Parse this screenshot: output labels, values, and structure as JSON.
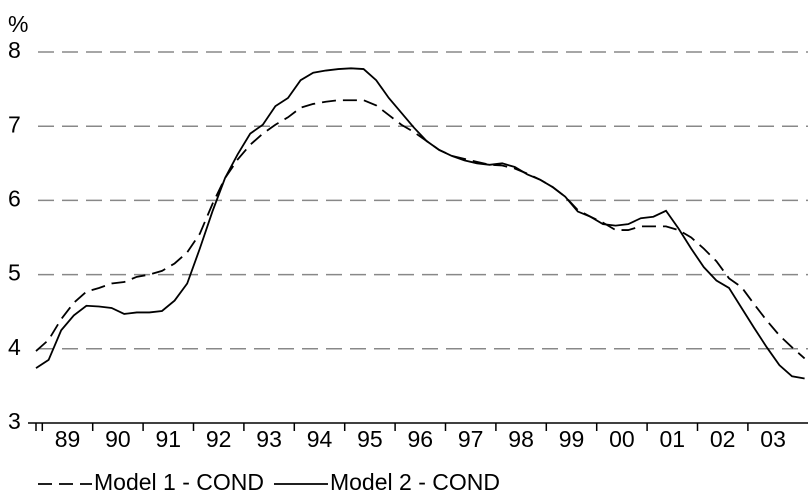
{
  "chart_data": {
    "type": "line",
    "y_label": "%",
    "categories": [
      null,
      "89",
      null,
      null,
      null,
      "90",
      null,
      null,
      null,
      "91",
      null,
      null,
      null,
      "92",
      null,
      null,
      null,
      "93",
      null,
      null,
      null,
      "94",
      null,
      null,
      null,
      "95",
      null,
      null,
      null,
      "96",
      null,
      null,
      null,
      "97",
      null,
      null,
      null,
      "98",
      null,
      null,
      null,
      "99",
      null,
      null,
      null,
      "00",
      null,
      null,
      null,
      "01",
      null,
      null,
      null,
      "02",
      null,
      null,
      null,
      "03",
      null,
      null,
      null,
      null
    ],
    "series": [
      {
        "name": "Model 1 - COND",
        "color": "#000000",
        "dashed": true,
        "values": [
          3.97,
          4.12,
          4.4,
          4.62,
          4.77,
          4.82,
          4.88,
          4.9,
          4.97,
          5.0,
          5.05,
          5.15,
          5.3,
          5.55,
          5.95,
          6.3,
          6.55,
          6.75,
          6.9,
          7.02,
          7.12,
          7.25,
          7.3,
          7.33,
          7.35,
          7.35,
          7.35,
          7.28,
          7.15,
          7.02,
          6.92,
          6.8,
          6.68,
          6.6,
          6.56,
          6.52,
          6.48,
          6.47,
          6.43,
          6.36,
          6.28,
          6.18,
          6.05,
          5.87,
          5.78,
          5.7,
          5.6,
          5.6,
          5.65,
          5.65,
          5.65,
          5.6,
          5.5,
          5.35,
          5.18,
          4.95,
          4.83,
          4.6,
          4.38,
          4.18,
          4.02,
          3.87
        ]
      },
      {
        "name": "Model 2 - COND",
        "color": "#000000",
        "dashed": false,
        "values": [
          3.74,
          3.85,
          4.25,
          4.45,
          4.58,
          4.57,
          4.55,
          4.47,
          4.49,
          4.49,
          4.51,
          4.65,
          4.88,
          5.35,
          5.85,
          6.3,
          6.62,
          6.9,
          7.02,
          7.27,
          7.38,
          7.62,
          7.72,
          7.75,
          7.77,
          7.78,
          7.77,
          7.62,
          7.38,
          7.18,
          6.98,
          6.8,
          6.68,
          6.6,
          6.54,
          6.5,
          6.48,
          6.5,
          6.45,
          6.35,
          6.28,
          6.18,
          6.05,
          5.85,
          5.78,
          5.68,
          5.66,
          5.68,
          5.76,
          5.78,
          5.86,
          5.62,
          5.35,
          5.1,
          4.92,
          4.82,
          4.55,
          4.28,
          4.02,
          3.78,
          3.63,
          3.6
        ]
      }
    ],
    "ylim": [
      3,
      8
    ],
    "yticks": [
      3,
      4,
      5,
      6,
      7,
      8
    ],
    "grid": true,
    "legend": "bottom"
  }
}
